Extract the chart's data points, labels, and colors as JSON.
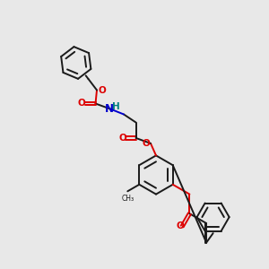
{
  "bg_color": "#e8e8e8",
  "bond_color": "#1a1a1a",
  "oxygen_color": "#dd0000",
  "nitrogen_color": "#0000cc",
  "hydrogen_color": "#008080",
  "lw": 1.4,
  "dbo": 0.055,
  "xlim": [
    0,
    10
  ],
  "ylim": [
    0,
    10
  ]
}
